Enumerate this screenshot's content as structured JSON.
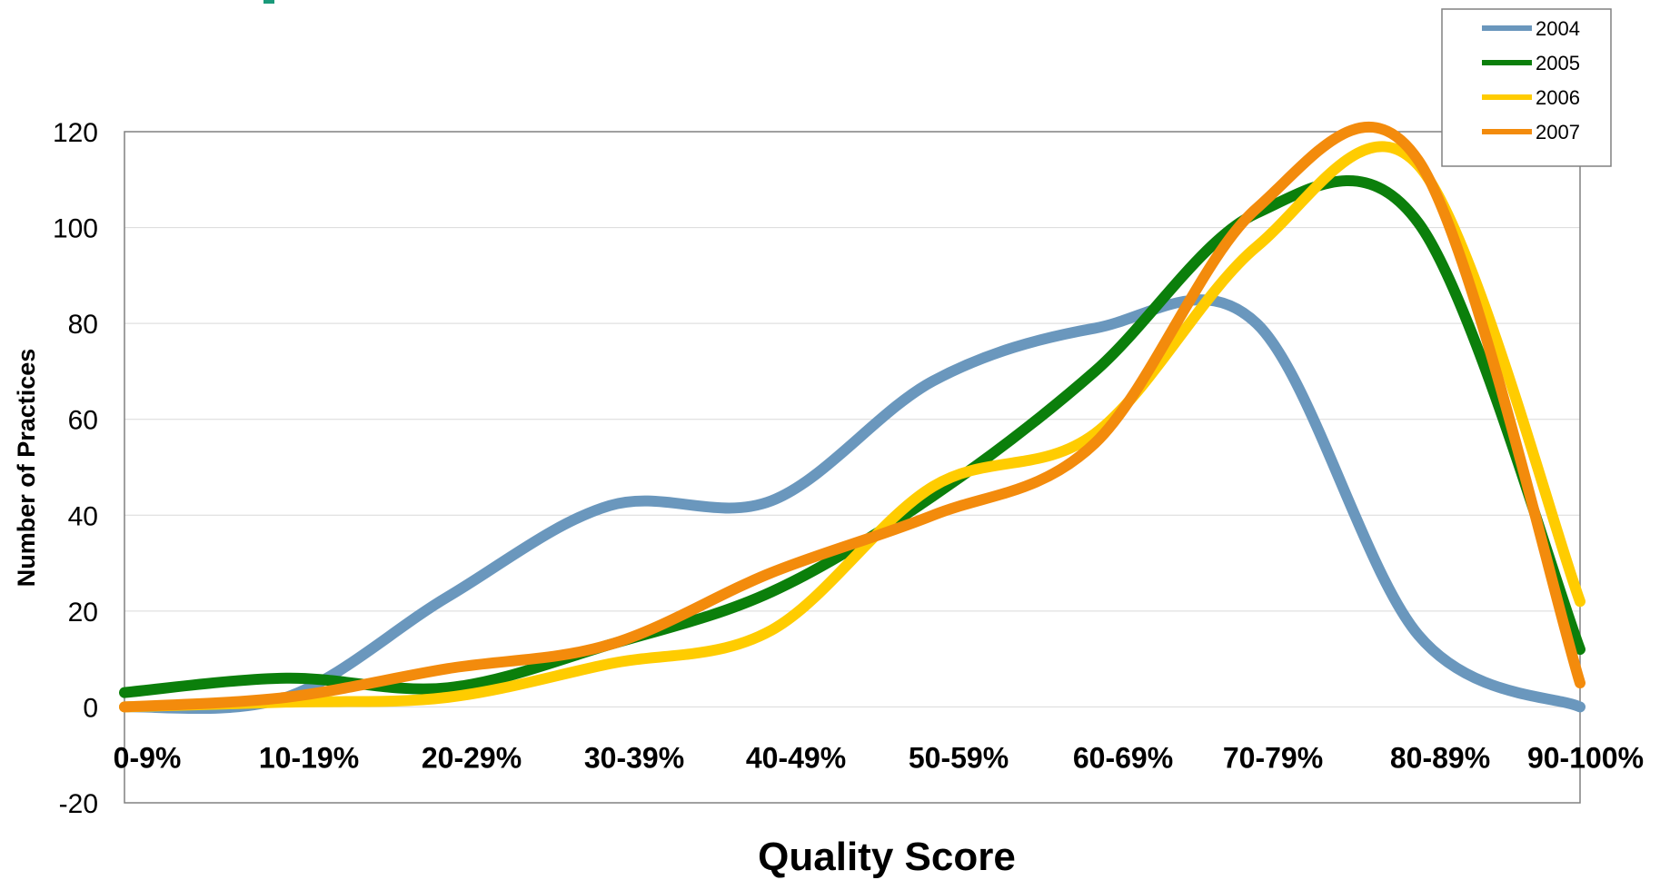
{
  "header_fragment_color": "#1a9a7a",
  "chart_data": {
    "type": "line",
    "smooth": true,
    "title": "",
    "xlabel": "Quality Score",
    "ylabel": "Number of Practices",
    "ylim": [
      -20,
      120
    ],
    "yticks": [
      120,
      100,
      80,
      60,
      40,
      20,
      0,
      -20
    ],
    "ytick_labels": [
      "120",
      "100",
      "80",
      "60",
      "40",
      "20",
      "0",
      "-20"
    ],
    "grid": true,
    "legend_position": "top-right",
    "categories": [
      "0-9%",
      "10-19%",
      "20-29%",
      "30-39%",
      "40-49%",
      "50-59%",
      "60-69%",
      "70-79%",
      "80-89%",
      "90-100%"
    ],
    "series": [
      {
        "name": "2004",
        "color": "#6a97bd",
        "values": [
          0,
          2,
          23,
          42,
          43,
          68,
          79,
          80,
          15,
          0
        ]
      },
      {
        "name": "2005",
        "color": "#0b7f0b",
        "values": [
          3,
          6,
          4,
          13,
          24,
          44,
          70,
          103,
          101,
          12
        ]
      },
      {
        "name": "2006",
        "color": "#ffcc00",
        "values": [
          0,
          1,
          2,
          9,
          16,
          46,
          57,
          96,
          113,
          22
        ]
      },
      {
        "name": "2007",
        "color": "#f38b0c",
        "values": [
          0,
          2,
          8,
          13,
          28,
          40,
          55,
          104,
          114,
          5
        ]
      }
    ]
  }
}
